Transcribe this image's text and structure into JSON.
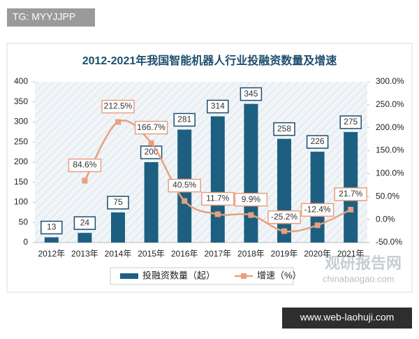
{
  "badge": "TG: MYYJJPP",
  "watermark": {
    "name": "观研报告网",
    "url": "chinabaogao.com"
  },
  "footer": "www.web-laohuji.com",
  "chart_data": {
    "type": "bar",
    "title": "2012-2021年我国智能机器人行业投融资数量及增速",
    "categories": [
      "2012年",
      "2013年",
      "2014年",
      "2015年",
      "2016年",
      "2017年",
      "2018年",
      "2019年",
      "2020年",
      "2021年"
    ],
    "series": [
      {
        "name": "投融资数量（起）",
        "type": "bar",
        "color": "#1d5f80",
        "values": [
          13,
          24,
          75,
          200,
          281,
          314,
          345,
          258,
          226,
          275
        ]
      },
      {
        "name": "增速（%）",
        "type": "line",
        "axis": "y2",
        "color": "#e8a07e",
        "values": [
          null,
          84.6,
          212.5,
          166.7,
          40.5,
          11.7,
          9.9,
          -25.2,
          -12.4,
          21.7
        ],
        "value_labels": [
          null,
          "84.6%",
          "212.5%",
          "166.7%",
          "40.5%",
          "11.7%",
          "9.9%",
          "-25.2%",
          "-12.4%",
          "21.7%"
        ]
      }
    ],
    "ylim": [
      0,
      400
    ],
    "yticks": [
      0,
      50,
      100,
      150,
      200,
      250,
      300,
      350,
      400
    ],
    "y2lim": [
      -50,
      300
    ],
    "y2ticks": [
      {
        "value": -50,
        "label": "-50.0%"
      },
      {
        "value": 0,
        "label": "0.0%"
      },
      {
        "value": 50,
        "label": "50.0%"
      },
      {
        "value": 100,
        "label": "100.0%"
      },
      {
        "value": 150,
        "label": "150.0%"
      },
      {
        "value": 200,
        "label": "200.0%"
      },
      {
        "value": 250,
        "label": "250.0%"
      },
      {
        "value": 300,
        "label": "300.0%"
      }
    ],
    "legend": "bottom"
  }
}
